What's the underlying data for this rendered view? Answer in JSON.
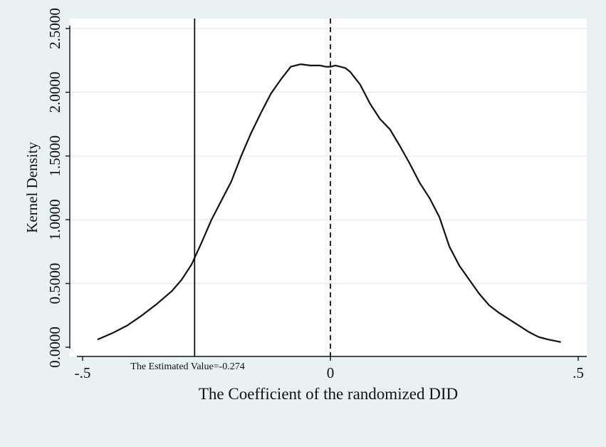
{
  "chart_data": {
    "type": "line",
    "title": "",
    "xlabel": "The Coefficient of the randomized DID",
    "ylabel": "Kernel Density",
    "xlim": [
      -0.5,
      0.5
    ],
    "ylim": [
      0,
      2.5
    ],
    "x_ticks": [
      {
        "value": -0.5,
        "label": "-.5"
      },
      {
        "value": 0,
        "label": "0"
      },
      {
        "value": 0.5,
        "label": ".5"
      }
    ],
    "y_ticks": [
      {
        "value": 0,
        "label": "0.0000"
      },
      {
        "value": 0.5,
        "label": "0.5000"
      },
      {
        "value": 1.0,
        "label": "1.0000"
      },
      {
        "value": 1.5,
        "label": "1.5000"
      },
      {
        "value": 2.0,
        "label": "2.0000"
      },
      {
        "value": 2.5,
        "label": "2.5000"
      }
    ],
    "grid": true,
    "series": [
      {
        "x": [
          -0.47,
          -0.44,
          -0.41,
          -0.38,
          -0.35,
          -0.32,
          -0.3,
          -0.28,
          -0.26,
          -0.24,
          -0.22,
          -0.2,
          -0.18,
          -0.16,
          -0.14,
          -0.12,
          -0.1,
          -0.08,
          -0.06,
          -0.04,
          -0.03,
          -0.02,
          -0.01,
          0.0,
          0.01,
          0.02,
          0.03,
          0.04,
          0.06,
          0.08,
          0.1,
          0.12,
          0.14,
          0.16,
          0.18,
          0.2,
          0.22,
          0.24,
          0.26,
          0.28,
          0.3,
          0.32,
          0.34,
          0.36,
          0.38,
          0.4,
          0.42,
          0.44,
          0.465
        ],
        "y": [
          0.06,
          0.11,
          0.17,
          0.25,
          0.34,
          0.44,
          0.53,
          0.65,
          0.82,
          1.0,
          1.15,
          1.3,
          1.5,
          1.68,
          1.84,
          1.99,
          2.1,
          2.2,
          2.22,
          2.21,
          2.21,
          2.21,
          2.2,
          2.2,
          2.21,
          2.2,
          2.19,
          2.16,
          2.06,
          1.91,
          1.79,
          1.71,
          1.58,
          1.44,
          1.29,
          1.17,
          1.02,
          0.79,
          0.64,
          0.53,
          0.42,
          0.33,
          0.27,
          0.22,
          0.17,
          0.12,
          0.08,
          0.06,
          0.04
        ]
      }
    ],
    "reference_lines": [
      {
        "x": -0.274,
        "style": "solid"
      },
      {
        "x": 0,
        "style": "dashed"
      }
    ],
    "annotation": {
      "x": -0.274,
      "text": "The Estimated Value=-0.274"
    }
  }
}
